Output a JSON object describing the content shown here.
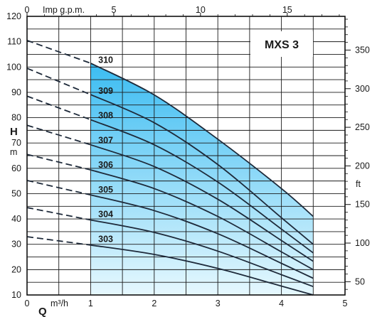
{
  "chart_data": {
    "type": "line",
    "title": "MXS 3",
    "x_axis_bottom": {
      "label": "Q",
      "unit": "m³/h",
      "range": [
        0,
        5
      ],
      "ticks": [
        "0",
        "1",
        "2",
        "3",
        "4",
        "5"
      ]
    },
    "x_axis_top": {
      "label": "Imp g.p.m.",
      "range": [
        0,
        18.33
      ],
      "ticks": [
        "0",
        "5",
        "10",
        "15"
      ],
      "tick_values": [
        0,
        5,
        10,
        15
      ]
    },
    "y_axis_left": {
      "label": "H",
      "unit": "m",
      "range": [
        10,
        120
      ],
      "ticks": [
        "10",
        "20",
        "30",
        "40",
        "50",
        "60",
        "70",
        "80",
        "90",
        "100",
        "110",
        "120"
      ]
    },
    "y_axis_right": {
      "label": "ft",
      "range": [
        32.8,
        393.7
      ],
      "ticks": [
        "50",
        "100",
        "150",
        "200",
        "250",
        "300",
        "350"
      ],
      "tick_values": [
        50,
        100,
        150,
        200,
        250,
        300,
        350
      ]
    },
    "grid": true,
    "operating_range": {
      "q_min": 1.0,
      "q_max": 4.5,
      "fill_top": "#3bbcf2",
      "fill_bottom": "#e6f8fe"
    },
    "series": [
      {
        "name": "303",
        "dashed": [
          [
            0,
            33
          ],
          [
            1,
            29.7
          ]
        ],
        "solid": [
          [
            1,
            29.7
          ],
          [
            2,
            26
          ],
          [
            3,
            20.5
          ],
          [
            4,
            13.5
          ],
          [
            4.5,
            10
          ]
        ]
      },
      {
        "name": "304",
        "dashed": [
          [
            0,
            44.5
          ],
          [
            1,
            39.6
          ]
        ],
        "solid": [
          [
            1,
            39.6
          ],
          [
            2,
            34.7
          ],
          [
            3,
            27.3
          ],
          [
            4,
            18
          ],
          [
            4.5,
            13.3
          ]
        ]
      },
      {
        "name": "305",
        "dashed": [
          [
            0,
            55.2
          ],
          [
            1,
            49.5
          ]
        ],
        "solid": [
          [
            1,
            49.5
          ],
          [
            2,
            43.3
          ],
          [
            3,
            34.2
          ],
          [
            4,
            22.5
          ],
          [
            4.5,
            16.6
          ]
        ]
      },
      {
        "name": "306",
        "dashed": [
          [
            0,
            65.5
          ],
          [
            1,
            59.4
          ]
        ],
        "solid": [
          [
            1,
            59.4
          ],
          [
            2,
            52
          ],
          [
            3,
            41
          ],
          [
            4,
            27
          ],
          [
            4.5,
            20
          ]
        ]
      },
      {
        "name": "307",
        "dashed": [
          [
            0,
            77
          ],
          [
            1,
            69.3
          ]
        ],
        "solid": [
          [
            1,
            69.3
          ],
          [
            2,
            60.7
          ],
          [
            3,
            47.8
          ],
          [
            4,
            31.5
          ],
          [
            4.5,
            23.3
          ]
        ]
      },
      {
        "name": "308",
        "dashed": [
          [
            0,
            88.5
          ],
          [
            1,
            79.2
          ]
        ],
        "solid": [
          [
            1,
            79.2
          ],
          [
            2,
            69.3
          ],
          [
            3,
            54.6
          ],
          [
            4,
            36
          ],
          [
            4.5,
            26.6
          ]
        ]
      },
      {
        "name": "309",
        "dashed": [
          [
            0,
            99.5
          ],
          [
            1,
            89.1
          ]
        ],
        "solid": [
          [
            1,
            89.1
          ],
          [
            2,
            78
          ],
          [
            3,
            61.5
          ],
          [
            4,
            40.5
          ],
          [
            4.5,
            30
          ]
        ]
      },
      {
        "name": "310",
        "dashed": [
          [
            0,
            110.5
          ],
          [
            1,
            101.5
          ]
        ],
        "solid": [
          [
            1,
            101.5
          ],
          [
            2,
            89
          ],
          [
            3,
            71.5
          ],
          [
            4,
            52
          ],
          [
            4.5,
            41
          ]
        ]
      }
    ],
    "colors": {
      "curve": "#1e2a3a",
      "grid": "#1a1a1a",
      "frame": "#111111"
    }
  }
}
